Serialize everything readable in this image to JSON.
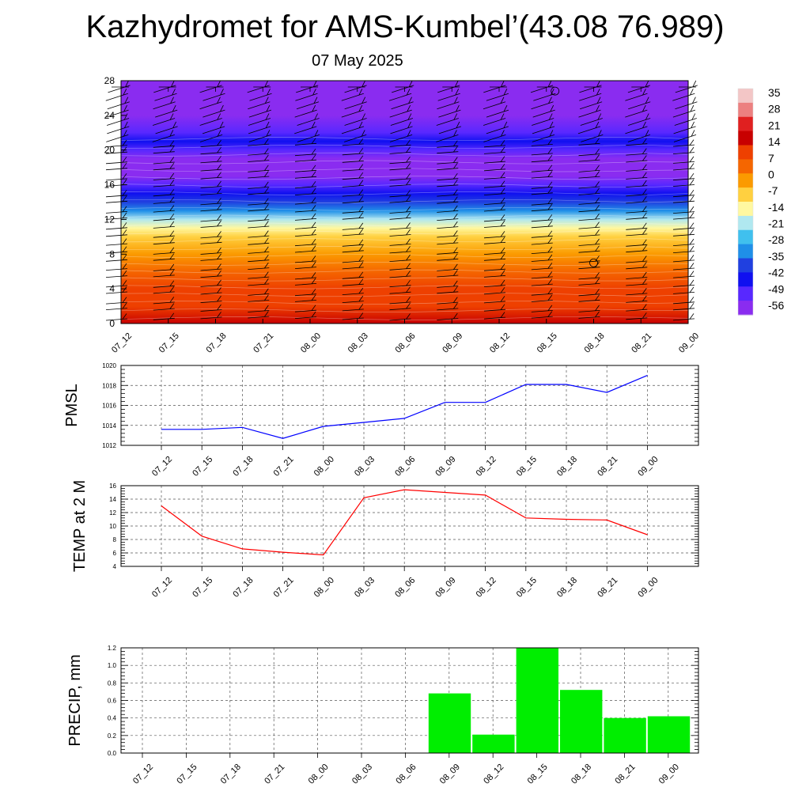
{
  "title": "Kazhydromet for AMS-Kumbel’(43.08 76.989)",
  "subtitle": "07 May 2025",
  "chart_data": [
    {
      "type": "heatmap",
      "title": "",
      "x_labels": [
        "07_12",
        "07_15",
        "07_18",
        "07_21",
        "08_00",
        "08_03",
        "08_06",
        "08_09",
        "08_12",
        "08_15",
        "08_18",
        "08_21",
        "09_00"
      ],
      "y_ticks": [
        0,
        4,
        8,
        12,
        16,
        20,
        24,
        28
      ],
      "ylim": [
        0,
        28
      ],
      "colorbar_labels": [
        "35",
        "28",
        "21",
        "14",
        "7",
        "0",
        "-7",
        "-14",
        "-21",
        "-28",
        "-35",
        "-42",
        "-49",
        "-56"
      ],
      "colorbar_colors": [
        "#f3c6c6",
        "#ec8080",
        "#e02020",
        "#c80000",
        "#ee4000",
        "#f56600",
        "#fb9a00",
        "#ffd040",
        "#fff8a0",
        "#b0e8f0",
        "#40c0ee",
        "#1f8fe8",
        "#2040e0",
        "#1010f0",
        "#5828ff",
        "#8a2cf0"
      ],
      "profile_levels": [
        0,
        2,
        4,
        6,
        8,
        10,
        11,
        12,
        13,
        14,
        15,
        16,
        17,
        18,
        19,
        20,
        21,
        22,
        24,
        28
      ],
      "profile_values": [
        13,
        11,
        8,
        5,
        0,
        -6,
        -14,
        -21,
        -28,
        -35,
        -42,
        -49,
        -53,
        -56,
        -54,
        -49,
        -42,
        -49,
        -56,
        -58
      ],
      "wind_barbs": true,
      "grid": false
    },
    {
      "type": "line",
      "ylabel": "PMSL",
      "categories": [
        "07_12",
        "07_15",
        "07_18",
        "07_21",
        "08_00",
        "08_03",
        "08_06",
        "08_09",
        "08_12",
        "08_15",
        "08_18",
        "08_21",
        "09_00"
      ],
      "y_ticks": [
        1012,
        1014,
        1016,
        1018,
        1020
      ],
      "ylim": [
        1012,
        1020
      ],
      "values": [
        1013.6,
        1013.6,
        1013.8,
        1012.7,
        1013.9,
        1014.3,
        1014.7,
        1016.3,
        1016.3,
        1018.1,
        1018.1,
        1017.3,
        1019.0
      ],
      "color": "#0000ff",
      "grid": true
    },
    {
      "type": "line",
      "ylabel": "TEMP at 2 M",
      "categories": [
        "07_12",
        "07_15",
        "07_18",
        "07_21",
        "08_00",
        "08_03",
        "08_06",
        "08_09",
        "08_12",
        "08_15",
        "08_18",
        "08_21",
        "09_00"
      ],
      "y_ticks": [
        4,
        6,
        8,
        10,
        12,
        14,
        16
      ],
      "ylim": [
        4,
        16
      ],
      "values": [
        13.0,
        8.5,
        6.6,
        6.1,
        5.7,
        14.2,
        15.4,
        15.0,
        14.6,
        11.2,
        11.0,
        10.9,
        8.7
      ],
      "color": "#ff0000",
      "grid": true
    },
    {
      "type": "bar",
      "ylabel": "PRECIP, mm",
      "categories": [
        "07_12",
        "07_15",
        "07_18",
        "07_21",
        "08_00",
        "08_03",
        "08_06",
        "08_09",
        "08_12",
        "08_15",
        "08_18",
        "08_21",
        "09_00"
      ],
      "y_ticks": [
        "0.0",
        "0.2",
        "0.4",
        "0.6",
        "0.8",
        "1.0",
        "1.2"
      ],
      "ylim": [
        0,
        1.2
      ],
      "values": [
        0,
        0,
        0,
        0,
        0,
        0,
        0,
        0.68,
        0.21,
        1.2,
        0.72,
        0.4,
        0.42
      ],
      "color": "#00ee00",
      "grid": true
    }
  ]
}
